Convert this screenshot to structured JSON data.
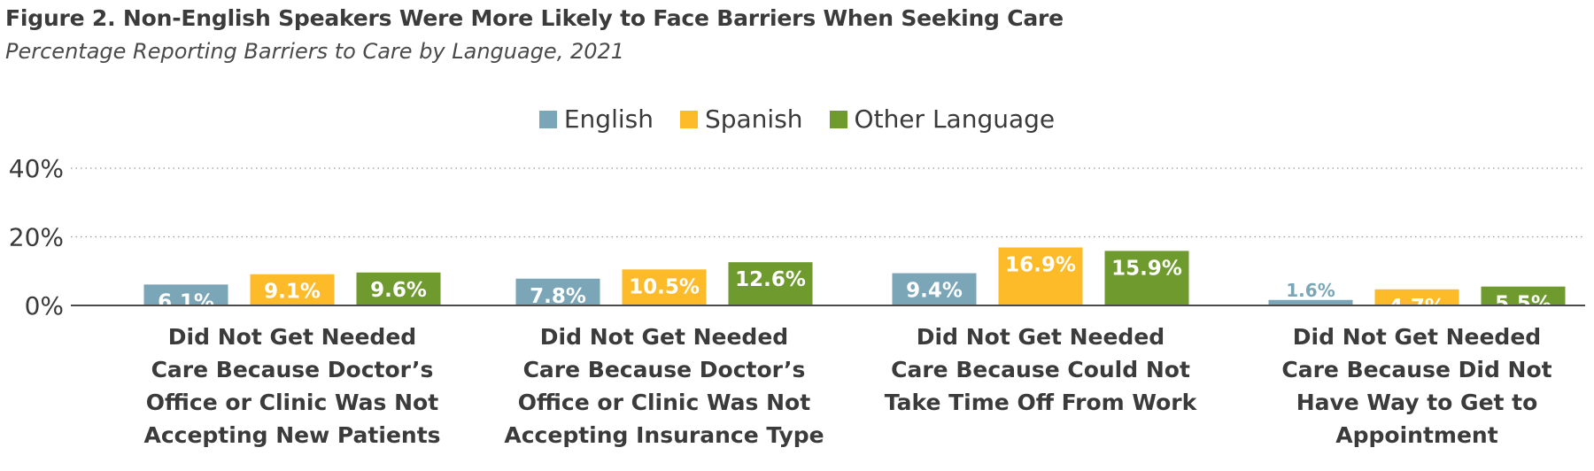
{
  "header": {
    "title": "Figure 2. Non-English Speakers Were More Likely to Face Barriers When Seeking Care",
    "subtitle": "Percentage Reporting Barriers to Care by Language, 2021"
  },
  "colors": {
    "english": "#7ba6b8",
    "spanish": "#fdbb2a",
    "other": "#6f9a2e",
    "grid": "#9a9a9a",
    "axis": "#4a4a4a"
  },
  "chart_data": {
    "type": "bar",
    "title": "Figure 2. Non-English Speakers Were More Likely to Face Barriers When Seeking Care",
    "subtitle": "Percentage Reporting Barriers to Care by Language, 2021",
    "xlabel": "",
    "ylabel": "",
    "ylim": [
      0,
      40
    ],
    "yticks": [
      "0%",
      "20%",
      "40%"
    ],
    "grid": true,
    "legend_position": "top-center",
    "categories": [
      "Did Not Get Needed Care Because Doctor’s Office or Clinic Was Not Accepting New Patients",
      "Did Not Get Needed Care Because Doctor’s Office or Clinic Was Not Accepting Insurance Type",
      "Did Not Get Needed Care Because Could Not Take Time Off From Work",
      "Did Not Get Needed Care Because Did Not Have Way to Get to Appointment"
    ],
    "category_lines": [
      [
        "Did Not Get Needed",
        "Care Because Doctor’s",
        "Office or Clinic Was Not",
        "Accepting New Patients"
      ],
      [
        "Did Not Get Needed",
        "Care Because Doctor’s",
        "Office or Clinic Was Not",
        "Accepting Insurance Type"
      ],
      [
        "Did Not Get Needed",
        "Care Because Could Not",
        "Take Time Off From Work"
      ],
      [
        "Did Not Get Needed",
        "Care Because Did Not",
        "Have Way to Get to",
        "Appointment"
      ]
    ],
    "series": [
      {
        "name": "English",
        "values": [
          6.1,
          7.8,
          9.4,
          1.6
        ],
        "labels": [
          "6.1%",
          "7.8%",
          "9.4%",
          "1.6%"
        ]
      },
      {
        "name": "Spanish",
        "values": [
          9.1,
          10.5,
          16.9,
          4.7
        ],
        "labels": [
          "9.1%",
          "10.5%",
          "16.9%",
          "4.7%"
        ]
      },
      {
        "name": "Other Language",
        "values": [
          9.6,
          12.6,
          15.9,
          5.5
        ],
        "labels": [
          "9.6%",
          "12.6%",
          "15.9%",
          "5.5%"
        ]
      }
    ]
  }
}
